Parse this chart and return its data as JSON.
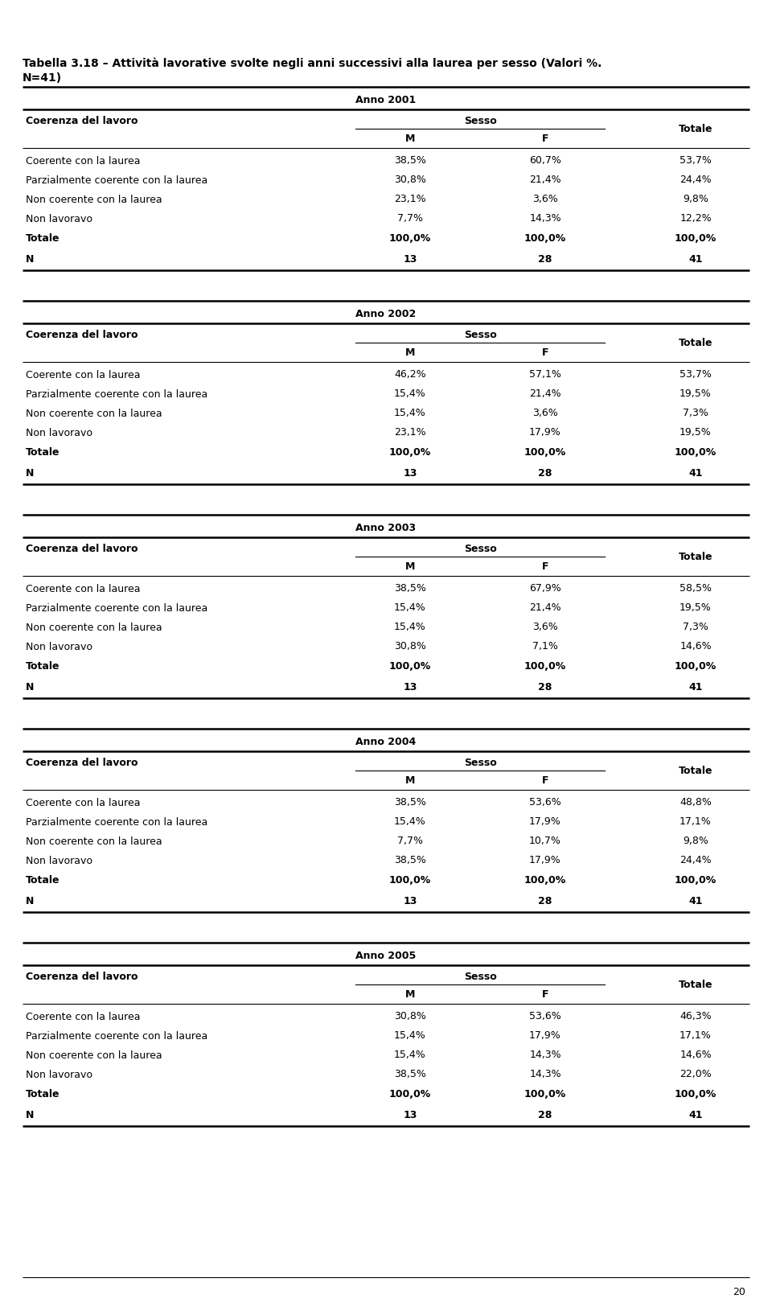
{
  "title_line1": "Tabella 3.18 – Attività lavorative svolte negli anni successivi alla laurea per sesso (Valori %.",
  "title_line2": "N=41)",
  "background_color": "#ffffff",
  "tables": [
    {
      "anno": "Anno 2001",
      "rows": [
        {
          "label": "Coerente con la laurea",
          "m": "38,5%",
          "f": "60,7%",
          "tot": "53,7%"
        },
        {
          "label": "Parzialmente coerente con la laurea",
          "m": "30,8%",
          "f": "21,4%",
          "tot": "24,4%"
        },
        {
          "label": "Non coerente con la laurea",
          "m": "23,1%",
          "f": "3,6%",
          "tot": "9,8%"
        },
        {
          "label": "Non lavoravo",
          "m": "7,7%",
          "f": "14,3%",
          "tot": "12,2%"
        }
      ],
      "totale_row": {
        "label": "Totale",
        "m": "100,0%",
        "f": "100,0%",
        "tot": "100,0%"
      },
      "n_row": {
        "label": "N",
        "m": "13",
        "f": "28",
        "tot": "41"
      }
    },
    {
      "anno": "Anno 2002",
      "rows": [
        {
          "label": "Coerente con la laurea",
          "m": "46,2%",
          "f": "57,1%",
          "tot": "53,7%"
        },
        {
          "label": "Parzialmente coerente con la laurea",
          "m": "15,4%",
          "f": "21,4%",
          "tot": "19,5%"
        },
        {
          "label": "Non coerente con la laurea",
          "m": "15,4%",
          "f": "3,6%",
          "tot": "7,3%"
        },
        {
          "label": "Non lavoravo",
          "m": "23,1%",
          "f": "17,9%",
          "tot": "19,5%"
        }
      ],
      "totale_row": {
        "label": "Totale",
        "m": "100,0%",
        "f": "100,0%",
        "tot": "100,0%"
      },
      "n_row": {
        "label": "N",
        "m": "13",
        "f": "28",
        "tot": "41"
      }
    },
    {
      "anno": "Anno 2003",
      "rows": [
        {
          "label": "Coerente con la laurea",
          "m": "38,5%",
          "f": "67,9%",
          "tot": "58,5%"
        },
        {
          "label": "Parzialmente coerente con la laurea",
          "m": "15,4%",
          "f": "21,4%",
          "tot": "19,5%"
        },
        {
          "label": "Non coerente con la laurea",
          "m": "15,4%",
          "f": "3,6%",
          "tot": "7,3%"
        },
        {
          "label": "Non lavoravo",
          "m": "30,8%",
          "f": "7,1%",
          "tot": "14,6%"
        }
      ],
      "totale_row": {
        "label": "Totale",
        "m": "100,0%",
        "f": "100,0%",
        "tot": "100,0%"
      },
      "n_row": {
        "label": "N",
        "m": "13",
        "f": "28",
        "tot": "41"
      }
    },
    {
      "anno": "Anno 2004",
      "rows": [
        {
          "label": "Coerente con la laurea",
          "m": "38,5%",
          "f": "53,6%",
          "tot": "48,8%"
        },
        {
          "label": "Parzialmente coerente con la laurea",
          "m": "15,4%",
          "f": "17,9%",
          "tot": "17,1%"
        },
        {
          "label": "Non coerente con la laurea",
          "m": "7,7%",
          "f": "10,7%",
          "tot": "9,8%"
        },
        {
          "label": "Non lavoravo",
          "m": "38,5%",
          "f": "17,9%",
          "tot": "24,4%"
        }
      ],
      "totale_row": {
        "label": "Totale",
        "m": "100,0%",
        "f": "100,0%",
        "tot": "100,0%"
      },
      "n_row": {
        "label": "N",
        "m": "13",
        "f": "28",
        "tot": "41"
      }
    },
    {
      "anno": "Anno 2005",
      "rows": [
        {
          "label": "Coerente con la laurea",
          "m": "30,8%",
          "f": "53,6%",
          "tot": "46,3%"
        },
        {
          "label": "Parzialmente coerente con la laurea",
          "m": "15,4%",
          "f": "17,9%",
          "tot": "17,1%"
        },
        {
          "label": "Non coerente con la laurea",
          "m": "15,4%",
          "f": "14,3%",
          "tot": "14,6%"
        },
        {
          "label": "Non lavoravo",
          "m": "38,5%",
          "f": "14,3%",
          "tot": "22,0%"
        }
      ],
      "totale_row": {
        "label": "Totale",
        "m": "100,0%",
        "f": "100,0%",
        "tot": "100,0%"
      },
      "n_row": {
        "label": "N",
        "m": "13",
        "f": "28",
        "tot": "41"
      }
    }
  ],
  "page_number": "20",
  "col_header": "Coerenza del lavoro",
  "sesso_header": "Sesso",
  "col_m": "M",
  "col_f": "F",
  "col_tot": "Totale",
  "title_fontsize": 10.0,
  "header_fontsize": 9.0,
  "data_fontsize": 9.0
}
